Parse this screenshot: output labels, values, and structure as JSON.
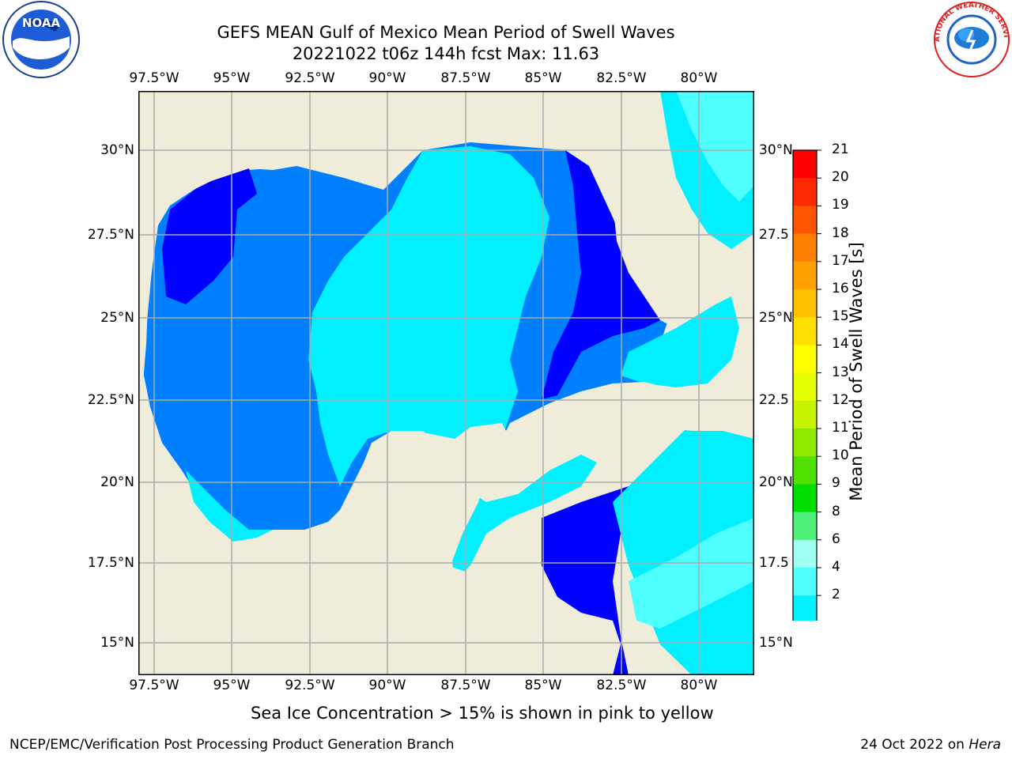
{
  "title_line1": "GEFS MEAN Gulf of Mexico Mean Period of Swell Waves",
  "title_line2": "20221022 t06z 144h fcst   Max: 11.63",
  "lon_ticks": [
    "97.5°W",
    "95°W",
    "92.5°W",
    "90°W",
    "87.5°W",
    "85°W",
    "82.5°W",
    "80°W"
  ],
  "lat_ticks_left": [
    "30°N",
    "27.5°N",
    "25°N",
    "22.5°N",
    "20°N",
    "17.5°N",
    "15°N"
  ],
  "lat_ticks_right": [
    "30°N",
    "27.5",
    "25°N",
    "22.5",
    "20°N",
    "17.5",
    "15°N"
  ],
  "colorbar": {
    "label": "Mean Period of Swell Waves [s]",
    "ticks": [
      "21",
      "20",
      "19",
      "18",
      "17",
      "16",
      "15",
      "14",
      "13",
      "12",
      "11",
      "10",
      "9",
      "8",
      "6",
      "4",
      "2"
    ],
    "colors": [
      "#ff0000",
      "#ff2a00",
      "#ff5500",
      "#ff8000",
      "#ff9f00",
      "#ffbf00",
      "#ffdf00",
      "#ffff00",
      "#e6ff00",
      "#c6f300",
      "#8ee800",
      "#4fdf00",
      "#00df00",
      "#4ff07a",
      "#9ffff0",
      "#4fffff",
      "#00f0ff",
      "#0080ff",
      "#0000ff"
    ]
  },
  "caption": "Sea Ice Concentration > 15% is shown in pink to yellow",
  "footer_left": "NCEP/EMC/Verification Post Processing Product Generation Branch",
  "footer_right_date": "24 Oct 2022 on ",
  "footer_right_host": "Hera",
  "colors": {
    "land": "#efedda",
    "swell_2_4": "#0080ff",
    "swell_4_6": "#00f0ff",
    "swell_6_8": "#4fffff",
    "swell_lt2": "#0000ff",
    "grid": "#aaaaaa"
  },
  "logos": {
    "noaa": "NOAA",
    "nws": "NATIONAL WEATHER SERVICE"
  }
}
